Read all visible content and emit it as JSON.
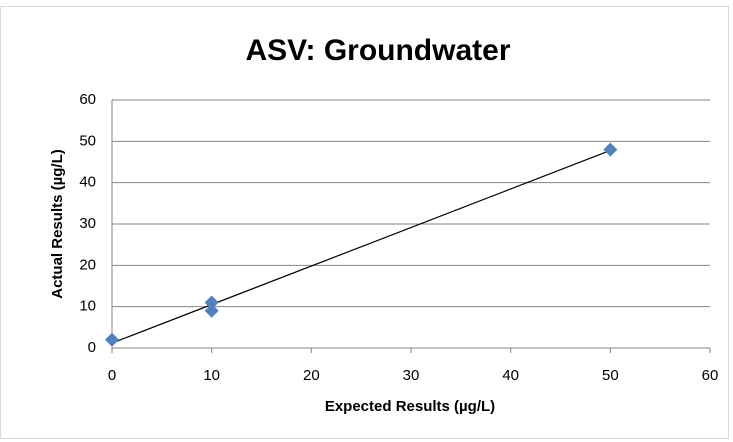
{
  "chart_data": {
    "type": "scatter",
    "title": "ASV: Groundwater",
    "x_label": "Expected Results (µg/L)",
    "y_label": "Actual Results (µg/L)",
    "series": [
      {
        "name": "ASV",
        "color": "#4f81bd",
        "x": [
          0,
          10,
          10,
          50
        ],
        "values": [
          2,
          11,
          9,
          48
        ]
      }
    ],
    "trendline": "linear",
    "xlim": [
      0,
      60
    ],
    "xticks": [
      0,
      10,
      20,
      30,
      40,
      50,
      60
    ],
    "ylim": [
      0,
      60
    ],
    "yticks": [
      0,
      10,
      20,
      30,
      40,
      50,
      60
    ],
    "grid": true
  }
}
